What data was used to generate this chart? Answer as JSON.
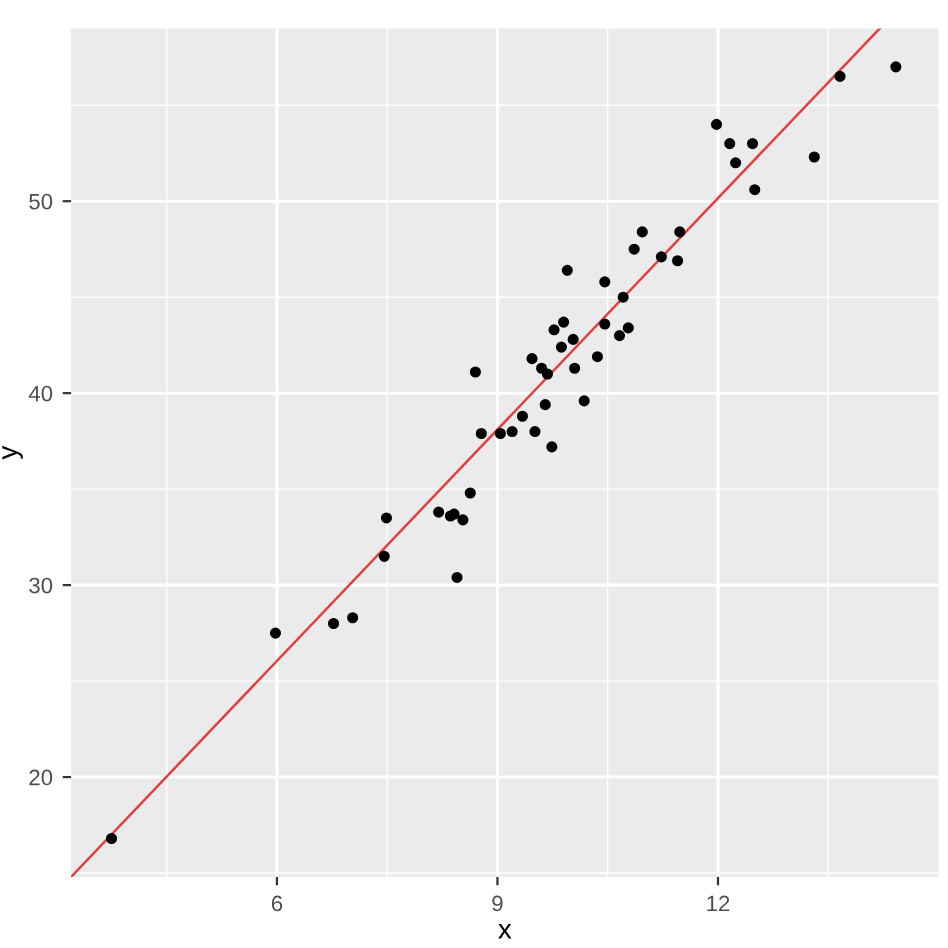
{
  "chart_data": {
    "type": "scatter",
    "xlabel": "x",
    "ylabel": "y",
    "xlim": [
      3.2,
      15.0
    ],
    "ylim": [
      14.8,
      59.0
    ],
    "xticks": [
      6,
      9,
      12
    ],
    "yticks": [
      20,
      30,
      40,
      50
    ],
    "grid": true,
    "marker": "circle",
    "series": [
      {
        "color": "#000000",
        "x": [
          3.75,
          5.98,
          6.77,
          7.03,
          7.46,
          7.49,
          8.2,
          8.36,
          8.41,
          8.53,
          8.45,
          8.63,
          8.7,
          8.78,
          9.04,
          9.2,
          9.34,
          9.47,
          9.51,
          9.6,
          9.65,
          9.68,
          9.74,
          9.77,
          9.87,
          9.9,
          9.95,
          10.03,
          10.05,
          10.18,
          10.36,
          10.46,
          10.46,
          10.66,
          10.71,
          10.78,
          10.86,
          10.97,
          11.23,
          11.45,
          11.48,
          11.98,
          12.16,
          12.24,
          12.47,
          12.5,
          13.31,
          13.66,
          14.42
        ],
        "values": [
          16.8,
          27.5,
          28.0,
          28.3,
          31.5,
          33.5,
          33.8,
          33.6,
          33.7,
          33.4,
          30.4,
          34.8,
          41.1,
          37.9,
          37.9,
          38.0,
          38.8,
          41.8,
          38.0,
          41.3,
          39.4,
          41.0,
          37.2,
          43.3,
          42.4,
          43.7,
          46.4,
          42.8,
          41.3,
          39.6,
          41.9,
          45.8,
          43.6,
          43.0,
          45.0,
          43.4,
          47.5,
          48.4,
          47.1,
          46.9,
          48.4,
          54.0,
          53.0,
          52.0,
          53.0,
          50.6,
          52.3,
          56.5,
          57.0
        ]
      },
      {
        "type": "line",
        "marker": "none",
        "color": "#e0403e",
        "x": [
          3.2,
          14.2
        ],
        "values": [
          14.8,
          59.0
        ]
      }
    ]
  }
}
